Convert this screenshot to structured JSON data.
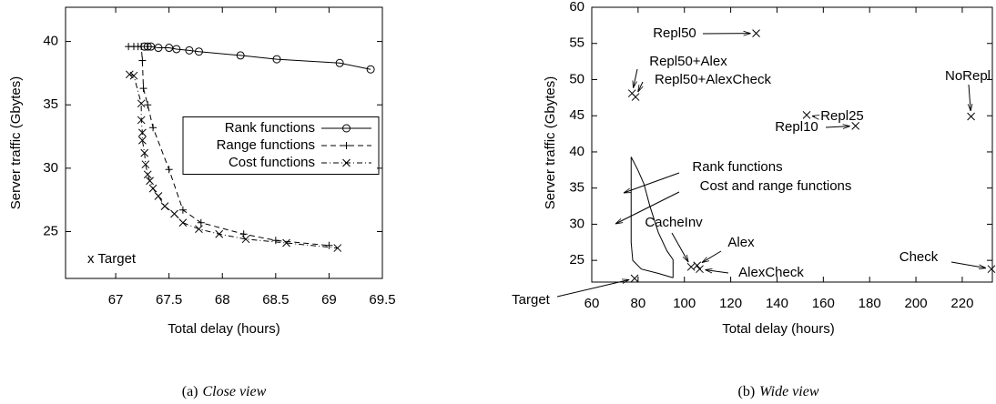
{
  "chart_data": [
    {
      "type": "line",
      "xlabel": "Total delay (hours)",
      "ylabel": "Server traffic (Gbytes)",
      "caption_prefix": "(a)",
      "caption": "Close view",
      "annotation": "x Target",
      "xlim": [
        66.53,
        69.5
      ],
      "xticks": [
        67,
        67.5,
        68,
        68.5,
        69,
        69.5
      ],
      "ylim": [
        21.3,
        42.7
      ],
      "yticks": [
        25,
        30,
        35,
        40
      ],
      "legend": "center right",
      "series": [
        {
          "name": "Rank functions",
          "color": "#000000",
          "marker": "circle",
          "dash": "solid",
          "x": [
            67.27,
            67.3,
            67.33,
            67.4,
            67.5,
            67.57,
            67.69,
            67.78,
            68.17,
            68.51,
            69.1,
            69.39
          ],
          "y": [
            39.6,
            39.6,
            39.6,
            39.5,
            39.5,
            39.4,
            39.3,
            39.2,
            38.9,
            38.6,
            38.3,
            37.8
          ]
        },
        {
          "name": "Range functions",
          "color": "#000000",
          "marker": "plus",
          "dash": "dashed",
          "x": [
            67.12,
            67.17,
            67.21,
            67.24,
            67.25,
            67.26,
            67.3,
            67.35,
            67.5,
            67.63,
            67.8,
            68.2,
            68.5,
            69.0
          ],
          "y": [
            39.6,
            39.6,
            39.6,
            39.6,
            38.5,
            36.3,
            35.0,
            33.2,
            29.9,
            26.7,
            25.7,
            24.8,
            24.3,
            23.9
          ]
        },
        {
          "name": "Cost functions",
          "color": "#000000",
          "marker": "cross",
          "dash": "dashdot",
          "x": [
            67.13,
            67.17,
            67.24,
            67.24,
            67.25,
            67.25,
            67.27,
            67.28,
            67.3,
            67.32,
            67.35,
            67.4,
            67.46,
            67.55,
            67.63,
            67.78,
            67.97,
            68.22,
            68.6,
            69.08
          ],
          "y": [
            37.4,
            37.3,
            35.1,
            33.8,
            32.8,
            32.2,
            31.2,
            30.3,
            29.5,
            29.0,
            28.4,
            27.8,
            27.0,
            26.4,
            25.7,
            25.2,
            24.8,
            24.4,
            24.1,
            23.7
          ]
        }
      ]
    },
    {
      "type": "scatter",
      "xlabel": "Total delay (hours)",
      "ylabel": "Server traffic (Gbytes)",
      "caption_prefix": "(b)",
      "caption": "Wide view",
      "xlim": [
        60,
        233
      ],
      "xticks": [
        60,
        80,
        100,
        120,
        140,
        160,
        180,
        200,
        220
      ],
      "ylim": [
        22,
        60
      ],
      "yticks": [
        25,
        30,
        35,
        40,
        45,
        50,
        55,
        60
      ],
      "points": [
        {
          "label": "Target",
          "x": 78.5,
          "y": 22.5
        },
        {
          "label": "Repl50",
          "x": 131,
          "y": 56.4
        },
        {
          "label": "Repl50+Alex",
          "x": 77.4,
          "y": 48.1
        },
        {
          "label": "Repl50+AlexCheck",
          "x": 78.9,
          "y": 47.6
        },
        {
          "label": "Repl25",
          "x": 152.8,
          "y": 45.1
        },
        {
          "label": "Repl10",
          "x": 173.9,
          "y": 43.6
        },
        {
          "label": "NoRepl",
          "x": 223.8,
          "y": 44.9
        },
        {
          "label": "CacheInv",
          "x": 102.9,
          "y": 24.1
        },
        {
          "label": "Alex",
          "x": 105.5,
          "y": 24.3
        },
        {
          "label": "AlexCheck",
          "x": 106.6,
          "y": 23.8
        },
        {
          "label": "Check",
          "x": 232.6,
          "y": 23.8
        }
      ],
      "series": [
        {
          "name": "Rank functions",
          "color": "#000000",
          "x": [
            77.0,
            79.9,
            82.5,
            85.1,
            88.8,
            92.5,
            95.1,
            95.1
          ],
          "y": [
            39.3,
            37.5,
            35.6,
            32.5,
            28.8,
            26.3,
            25.1,
            22.6
          ]
        },
        {
          "name": "Cost and range functions",
          "color": "#000000",
          "x": [
            77.0,
            77.0,
            77.0,
            77.7,
            81.4,
            88.8,
            95.1
          ],
          "y": [
            39.3,
            32.5,
            27.5,
            25.0,
            23.8,
            23.2,
            22.6
          ]
        }
      ]
    }
  ]
}
